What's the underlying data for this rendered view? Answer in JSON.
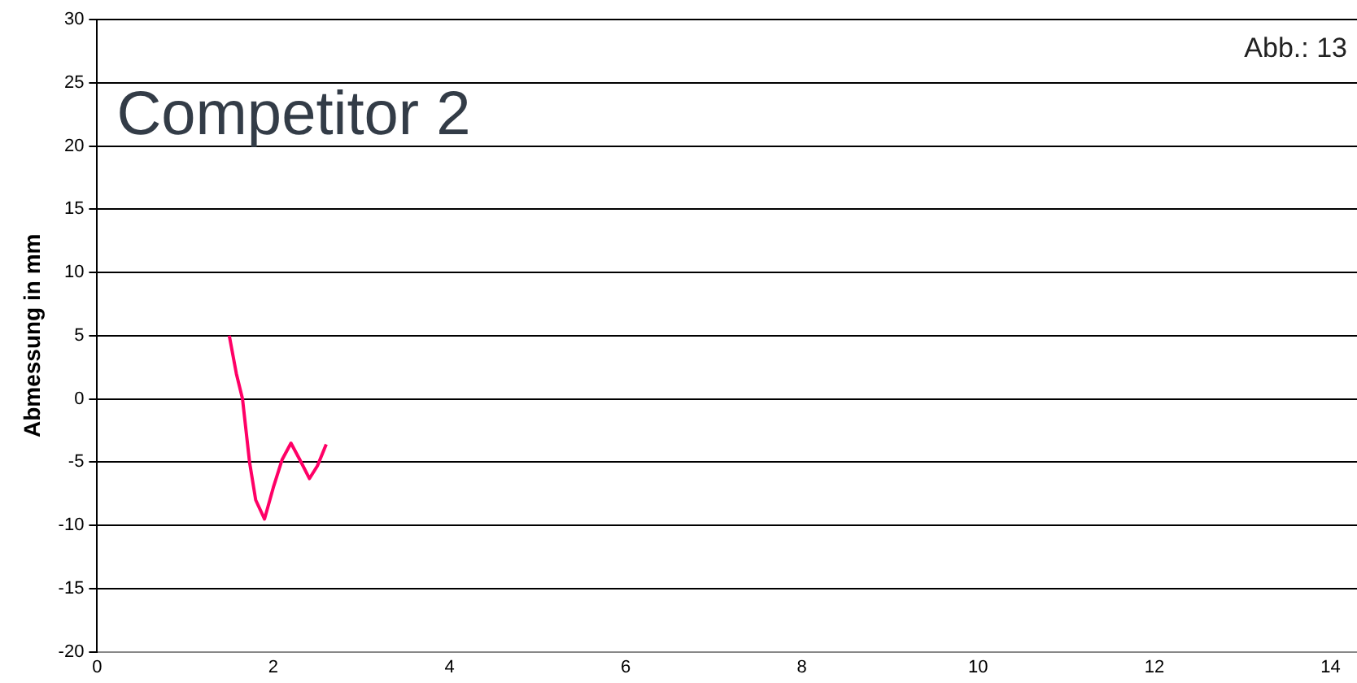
{
  "chart_data": {
    "type": "line",
    "title": "Competitor 2",
    "ylabel": "Abmessung in mm",
    "annotations": [
      "Abb.: 13"
    ],
    "x": [
      1.5,
      1.58,
      1.65,
      1.73,
      1.8,
      1.9,
      2.0,
      2.1,
      2.2,
      2.3,
      2.41,
      2.5,
      2.6
    ],
    "series": [
      {
        "color": "#ff0066",
        "values": [
          5,
          2,
          0,
          -5,
          -8,
          -9.5,
          -7,
          -4.8,
          -3.5,
          -4.8,
          -6.3,
          -5.3,
          -3.6
        ]
      }
    ],
    "xlim": [
      0,
      14.3
    ],
    "xticks": [
      0,
      2,
      4,
      6,
      8,
      10,
      12,
      14
    ],
    "ylim": [
      -20,
      30
    ],
    "yticks": [
      -20,
      -15,
      -10,
      -5,
      0,
      5,
      10,
      15,
      20,
      25,
      30
    ],
    "grid": "y",
    "marker": "none",
    "line_style": "solid",
    "legend": false
  }
}
